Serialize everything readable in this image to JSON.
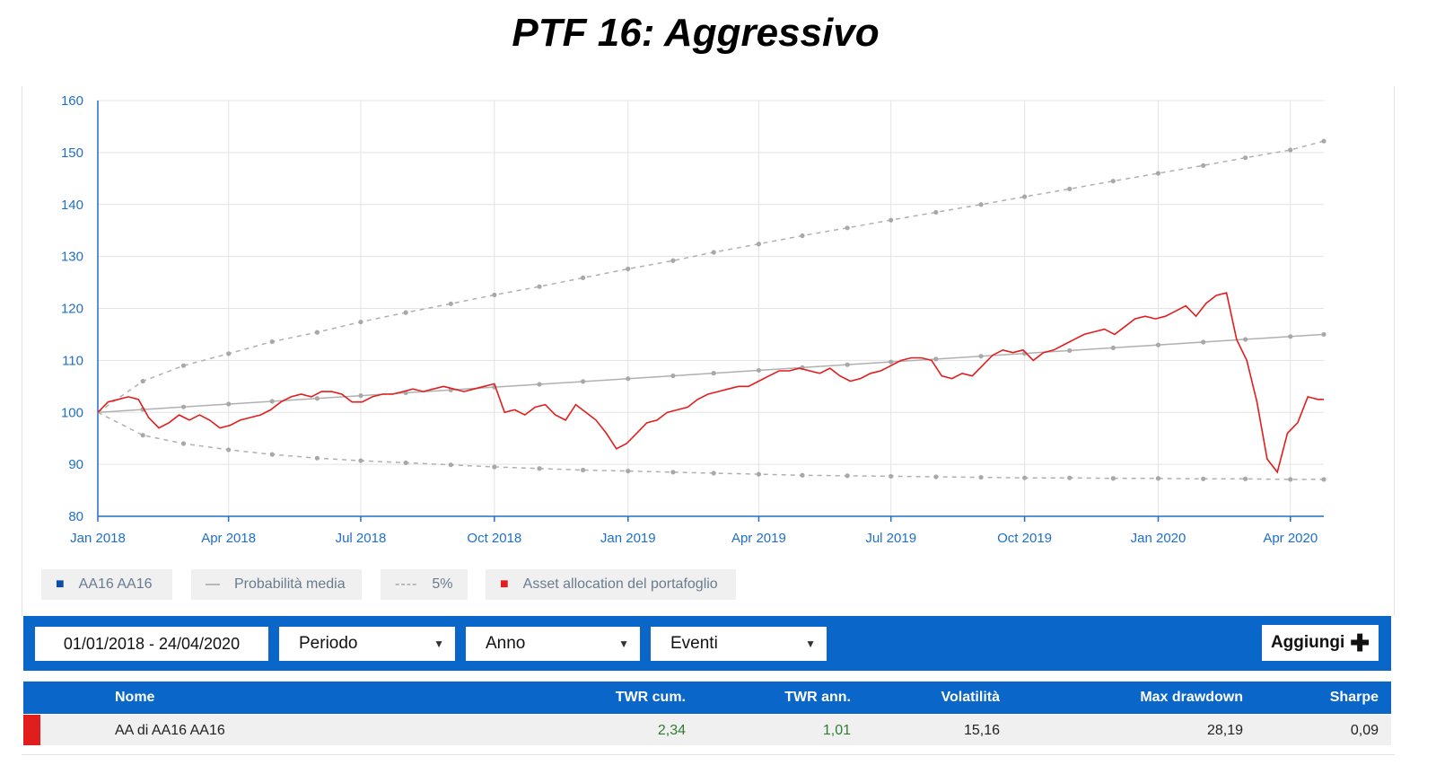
{
  "title": "PTF 16: Aggressivo",
  "chart_data": {
    "type": "line",
    "ylim": [
      80,
      160
    ],
    "yticks": [
      80,
      90,
      100,
      110,
      120,
      130,
      140,
      150,
      160
    ],
    "xticks": [
      {
        "label": "Jan 2018",
        "date": "2018-01-01"
      },
      {
        "label": "Apr 2018",
        "date": "2018-04-01"
      },
      {
        "label": "Jul 2018",
        "date": "2018-07-01"
      },
      {
        "label": "Oct 2018",
        "date": "2018-10-01"
      },
      {
        "label": "Jan 2019",
        "date": "2019-01-01"
      },
      {
        "label": "Apr 2019",
        "date": "2019-04-01"
      },
      {
        "label": "Jul 2019",
        "date": "2019-07-01"
      },
      {
        "label": "Oct 2019",
        "date": "2019-10-01"
      },
      {
        "label": "Jan 2020",
        "date": "2020-01-01"
      },
      {
        "label": "Apr 2020",
        "date": "2020-04-01"
      }
    ],
    "xlim": [
      "2018-01-01",
      "2020-04-24"
    ],
    "grid": true,
    "series": [
      {
        "name": "Probabilità media",
        "color": "#b0b0b0",
        "style": "solid-dotted",
        "points": [
          [
            "2018-01-01",
            100
          ],
          [
            "2020-04-24",
            115
          ]
        ]
      },
      {
        "name": "5%",
        "color": "#b0b0b0",
        "style": "dashed-upper",
        "points": [
          [
            "2018-01-01",
            100
          ],
          [
            "2018-02-01",
            106
          ],
          [
            "2018-03-01",
            109
          ],
          [
            "2018-04-01",
            111.3
          ],
          [
            "2018-05-01",
            113.6
          ],
          [
            "2018-06-01",
            115.4
          ],
          [
            "2018-07-01",
            117.4
          ],
          [
            "2018-08-01",
            119.2
          ],
          [
            "2018-09-01",
            120.9
          ],
          [
            "2018-10-01",
            122.6
          ],
          [
            "2018-11-01",
            124.2
          ],
          [
            "2018-12-01",
            125.9
          ],
          [
            "2019-01-01",
            127.6
          ],
          [
            "2019-02-01",
            129.2
          ],
          [
            "2019-03-01",
            130.8
          ],
          [
            "2019-04-01",
            132.4
          ],
          [
            "2019-05-01",
            134
          ],
          [
            "2019-06-01",
            135.5
          ],
          [
            "2019-07-01",
            137
          ],
          [
            "2019-08-01",
            138.5
          ],
          [
            "2019-09-01",
            140
          ],
          [
            "2019-10-01",
            141.5
          ],
          [
            "2019-11-01",
            143
          ],
          [
            "2019-12-01",
            144.5
          ],
          [
            "2020-01-01",
            146
          ],
          [
            "2020-02-01",
            147.5
          ],
          [
            "2020-03-01",
            149
          ],
          [
            "2020-04-01",
            150.5
          ],
          [
            "2020-04-24",
            152.2
          ]
        ]
      },
      {
        "name": "5%",
        "color": "#b0b0b0",
        "style": "dashed-lower",
        "points": [
          [
            "2018-01-01",
            100
          ],
          [
            "2018-02-01",
            95.6
          ],
          [
            "2018-03-01",
            94
          ],
          [
            "2018-04-01",
            92.8
          ],
          [
            "2018-05-01",
            91.9
          ],
          [
            "2018-06-01",
            91.2
          ],
          [
            "2018-07-01",
            90.7
          ],
          [
            "2018-08-01",
            90.3
          ],
          [
            "2018-09-01",
            89.9
          ],
          [
            "2018-10-01",
            89.5
          ],
          [
            "2018-11-01",
            89.2
          ],
          [
            "2018-12-01",
            88.9
          ],
          [
            "2019-01-01",
            88.7
          ],
          [
            "2019-02-01",
            88.5
          ],
          [
            "2019-03-01",
            88.3
          ],
          [
            "2019-04-01",
            88.1
          ],
          [
            "2019-05-01",
            87.9
          ],
          [
            "2019-06-01",
            87.8
          ],
          [
            "2019-07-01",
            87.7
          ],
          [
            "2019-08-01",
            87.6
          ],
          [
            "2019-09-01",
            87.5
          ],
          [
            "2019-10-01",
            87.4
          ],
          [
            "2019-11-01",
            87.4
          ],
          [
            "2019-12-01",
            87.3
          ],
          [
            "2020-01-01",
            87.3
          ],
          [
            "2020-02-01",
            87.2
          ],
          [
            "2020-03-01",
            87.2
          ],
          [
            "2020-04-01",
            87.1
          ],
          [
            "2020-04-24",
            87.1
          ]
        ]
      },
      {
        "name": "Asset allocation del portafoglio",
        "color": "#e21d1d",
        "style": "solid",
        "points": [
          [
            "2018-01-01",
            100
          ],
          [
            "2018-01-08",
            102
          ],
          [
            "2018-01-15",
            102.5
          ],
          [
            "2018-01-22",
            103
          ],
          [
            "2018-01-29",
            102.5
          ],
          [
            "2018-02-05",
            99
          ],
          [
            "2018-02-12",
            97
          ],
          [
            "2018-02-19",
            98
          ],
          [
            "2018-02-26",
            99.5
          ],
          [
            "2018-03-05",
            98.5
          ],
          [
            "2018-03-12",
            99.5
          ],
          [
            "2018-03-19",
            98.5
          ],
          [
            "2018-03-26",
            97
          ],
          [
            "2018-04-02",
            97.5
          ],
          [
            "2018-04-09",
            98.5
          ],
          [
            "2018-04-16",
            99
          ],
          [
            "2018-04-23",
            99.5
          ],
          [
            "2018-04-30",
            100.5
          ],
          [
            "2018-05-07",
            102
          ],
          [
            "2018-05-14",
            103
          ],
          [
            "2018-05-21",
            103.5
          ],
          [
            "2018-05-28",
            103
          ],
          [
            "2018-06-04",
            104
          ],
          [
            "2018-06-11",
            104
          ],
          [
            "2018-06-18",
            103.5
          ],
          [
            "2018-06-25",
            102
          ],
          [
            "2018-07-02",
            102
          ],
          [
            "2018-07-09",
            103
          ],
          [
            "2018-07-16",
            103.5
          ],
          [
            "2018-07-23",
            103.5
          ],
          [
            "2018-07-30",
            104
          ],
          [
            "2018-08-06",
            104.5
          ],
          [
            "2018-08-13",
            104
          ],
          [
            "2018-08-20",
            104.5
          ],
          [
            "2018-08-27",
            105
          ],
          [
            "2018-09-03",
            104.5
          ],
          [
            "2018-09-10",
            104
          ],
          [
            "2018-09-17",
            104.5
          ],
          [
            "2018-09-24",
            105
          ],
          [
            "2018-10-01",
            105.5
          ],
          [
            "2018-10-08",
            100
          ],
          [
            "2018-10-15",
            100.5
          ],
          [
            "2018-10-22",
            99.5
          ],
          [
            "2018-10-29",
            101
          ],
          [
            "2018-11-05",
            101.5
          ],
          [
            "2018-11-12",
            99.5
          ],
          [
            "2018-11-19",
            98.5
          ],
          [
            "2018-11-26",
            101.5
          ],
          [
            "2018-12-03",
            100
          ],
          [
            "2018-12-10",
            98.5
          ],
          [
            "2018-12-17",
            96
          ],
          [
            "2018-12-24",
            93
          ],
          [
            "2018-12-31",
            94
          ],
          [
            "2019-01-07",
            96
          ],
          [
            "2019-01-14",
            98
          ],
          [
            "2019-01-21",
            98.5
          ],
          [
            "2019-01-28",
            100
          ],
          [
            "2019-02-04",
            100.5
          ],
          [
            "2019-02-11",
            101
          ],
          [
            "2019-02-18",
            102.5
          ],
          [
            "2019-02-25",
            103.5
          ],
          [
            "2019-03-04",
            104
          ],
          [
            "2019-03-11",
            104.5
          ],
          [
            "2019-03-18",
            105
          ],
          [
            "2019-03-25",
            105
          ],
          [
            "2019-04-01",
            106
          ],
          [
            "2019-04-08",
            107
          ],
          [
            "2019-04-15",
            108
          ],
          [
            "2019-04-22",
            108
          ],
          [
            "2019-04-29",
            108.5
          ],
          [
            "2019-05-06",
            108
          ],
          [
            "2019-05-13",
            107.5
          ],
          [
            "2019-05-20",
            108.5
          ],
          [
            "2019-05-27",
            107
          ],
          [
            "2019-06-03",
            106
          ],
          [
            "2019-06-10",
            106.5
          ],
          [
            "2019-06-17",
            107.5
          ],
          [
            "2019-06-24",
            108
          ],
          [
            "2019-07-01",
            109
          ],
          [
            "2019-07-08",
            110
          ],
          [
            "2019-07-15",
            110.5
          ],
          [
            "2019-07-22",
            110.5
          ],
          [
            "2019-07-29",
            110
          ],
          [
            "2019-08-05",
            107
          ],
          [
            "2019-08-12",
            106.5
          ],
          [
            "2019-08-19",
            107.5
          ],
          [
            "2019-08-26",
            107
          ],
          [
            "2019-09-02",
            109
          ],
          [
            "2019-09-09",
            111
          ],
          [
            "2019-09-16",
            112
          ],
          [
            "2019-09-23",
            111.5
          ],
          [
            "2019-09-30",
            112
          ],
          [
            "2019-10-07",
            110
          ],
          [
            "2019-10-14",
            111.5
          ],
          [
            "2019-10-21",
            112
          ],
          [
            "2019-10-28",
            113
          ],
          [
            "2019-11-04",
            114
          ],
          [
            "2019-11-11",
            115
          ],
          [
            "2019-11-18",
            115.5
          ],
          [
            "2019-11-25",
            116
          ],
          [
            "2019-12-02",
            115
          ],
          [
            "2019-12-09",
            116.5
          ],
          [
            "2019-12-16",
            118
          ],
          [
            "2019-12-23",
            118.5
          ],
          [
            "2019-12-30",
            118
          ],
          [
            "2020-01-06",
            118.5
          ],
          [
            "2020-01-13",
            119.5
          ],
          [
            "2020-01-20",
            120.5
          ],
          [
            "2020-01-27",
            118.5
          ],
          [
            "2020-02-03",
            121
          ],
          [
            "2020-02-10",
            122.5
          ],
          [
            "2020-02-17",
            123
          ],
          [
            "2020-02-24",
            114
          ],
          [
            "2020-03-02",
            110
          ],
          [
            "2020-03-09",
            102
          ],
          [
            "2020-03-16",
            91
          ],
          [
            "2020-03-23",
            88.5
          ],
          [
            "2020-03-30",
            96
          ],
          [
            "2020-04-06",
            98
          ],
          [
            "2020-04-13",
            103
          ],
          [
            "2020-04-20",
            102.5
          ],
          [
            "2020-04-24",
            102.5
          ]
        ]
      }
    ]
  },
  "legend": [
    {
      "label": "AA16 AA16",
      "symbol": "■",
      "color": "#0a4ea8"
    },
    {
      "label": "Probabilità media",
      "symbol": "—",
      "color": "#888888"
    },
    {
      "label": "5%",
      "symbol": "----",
      "color": "#999999"
    },
    {
      "label": "Asset allocation del portafoglio",
      "symbol": "■",
      "color": "#e21d1d"
    }
  ],
  "toolbar": {
    "date_range": "01/01/2018 - 24/04/2020",
    "periodo": "Periodo",
    "anno": "Anno",
    "eventi": "Eventi",
    "caret": "▼",
    "add_label": "Aggiungi",
    "add_icon": "✚"
  },
  "table": {
    "headers": {
      "nome": "Nome",
      "twr_cum": "TWR cum.",
      "twr_ann": "TWR ann.",
      "volatilita": "Volatilità",
      "max_drawdown": "Max drawdown",
      "sharpe": "Sharpe"
    },
    "rows": [
      {
        "nome": "AA di AA16 AA16",
        "twr_cum": "2,34",
        "twr_ann": "1,01",
        "volatilita": "15,16",
        "max_drawdown": "28,19",
        "sharpe": "0,09"
      }
    ],
    "positive_color": "#2e7d32"
  }
}
